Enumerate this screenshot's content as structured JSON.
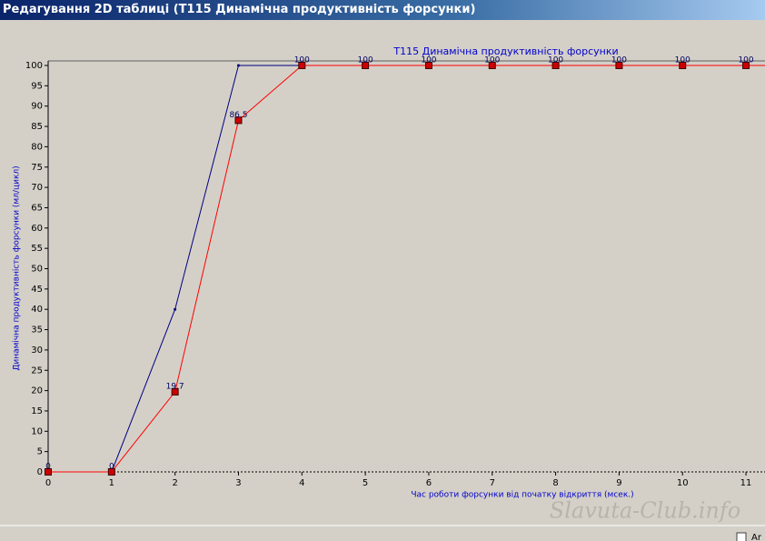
{
  "window": {
    "title": "Редагування 2D таблиці (T115 Динамічна продуктивність форсунки)"
  },
  "watermark": "Slavuta-Club.info",
  "checkbox_label": "Ar",
  "chart_data": {
    "type": "line",
    "title": "T115 Динамічна продуктивність форсунки",
    "x_label": "Час роботи форсунки від початку відкриття (мсек.)",
    "y_label": "Динамічна продуктивність форсунки (мл/цикл)",
    "x": [
      0,
      1,
      2,
      3,
      4,
      5,
      6,
      7,
      8,
      9,
      10,
      11
    ],
    "series": [
      {
        "color": "#000080",
        "marker": "dot",
        "data_labels": false,
        "values": [
          0,
          0,
          40,
          100,
          100,
          100,
          100,
          100,
          100,
          100,
          100,
          100
        ]
      },
      {
        "color": "#ff0000",
        "marker": "square",
        "data_labels": true,
        "values": [
          0,
          0,
          19.7,
          86.5,
          100,
          100,
          100,
          100,
          100,
          100,
          100,
          100
        ]
      }
    ],
    "xlim": [
      0,
      11.3
    ],
    "ylim": [
      0,
      100
    ],
    "xticks": [
      0,
      1,
      2,
      3,
      4,
      5,
      6,
      7,
      8,
      9,
      10,
      11
    ],
    "yticks": [
      0,
      5,
      10,
      15,
      20,
      25,
      30,
      35,
      40,
      45,
      50,
      55,
      60,
      65,
      70,
      75,
      80,
      85,
      90,
      95,
      100
    ],
    "grid": false
  }
}
